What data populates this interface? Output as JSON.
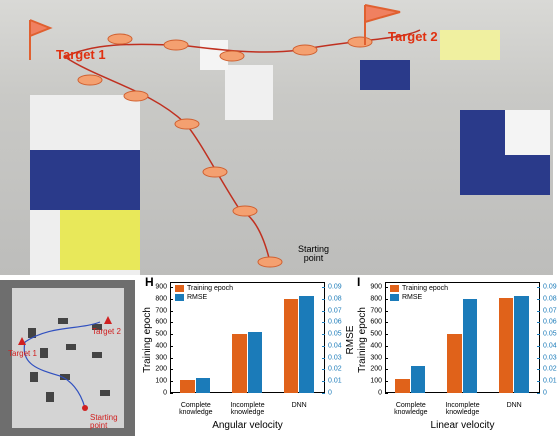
{
  "photo": {
    "labels": [
      "Target 1",
      "Target 2",
      "Starting\npoint"
    ]
  },
  "map": {
    "labels": [
      "Target 2",
      "Target 1",
      "Starting\npoint"
    ]
  },
  "chart_data": [
    {
      "type": "bar",
      "panel": "H",
      "x_label": "Angular velocity",
      "y_label": "Training epoch",
      "y2_label": "RMSE",
      "categories": [
        "Complete\nknowledge",
        "Incomplete\nknowledge",
        "DNN"
      ],
      "series": [
        {
          "name": "Training epoch",
          "color": "#e0621a",
          "values": [
            110,
            500,
            800
          ]
        },
        {
          "name": "RMSE",
          "color": "#1b7bb9",
          "axis": "y2",
          "values": [
            0.013,
            0.052,
            0.082
          ]
        }
      ],
      "ylim": [
        0,
        900
      ],
      "yticks": [
        0,
        100,
        200,
        300,
        400,
        500,
        600,
        700,
        800,
        900
      ],
      "y2lim": [
        0,
        0.09
      ],
      "y2ticks": [
        0,
        0.01,
        0.02,
        0.03,
        0.04,
        0.05,
        0.06,
        0.07,
        0.08,
        0.09
      ]
    },
    {
      "type": "bar",
      "panel": "I",
      "x_label": "Linear velocity",
      "y_label": "Training epoch",
      "categories": [
        "Complete\nknowledge",
        "Incomplete\nknowledge",
        "DNN"
      ],
      "series": [
        {
          "name": "Training epoch",
          "color": "#e0621a",
          "values": [
            120,
            500,
            805
          ]
        },
        {
          "name": "RMSE",
          "color": "#1b7bb9",
          "axis": "y2",
          "values": [
            0.023,
            0.08,
            0.082
          ]
        }
      ],
      "ylim": [
        0,
        900
      ],
      "yticks": [
        0,
        100,
        200,
        300,
        400,
        500,
        600,
        700,
        800,
        900
      ],
      "y2lim": [
        0,
        0.09
      ],
      "y2ticks": [
        0,
        0.01,
        0.02,
        0.03,
        0.04,
        0.05,
        0.06,
        0.07,
        0.08,
        0.09
      ]
    }
  ]
}
